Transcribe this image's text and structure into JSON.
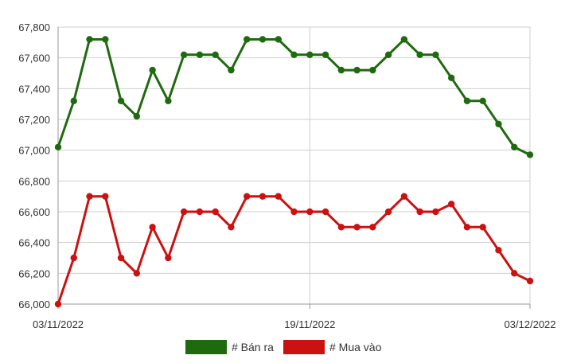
{
  "chart_data": {
    "type": "line",
    "title": "",
    "xlabel": "",
    "ylabel": "",
    "x_tick_labels": [
      "03/11/2022",
      "19/11/2022",
      "03/12/2022"
    ],
    "x_tick_index": [
      0,
      16,
      30
    ],
    "y_ticks": [
      66000,
      66200,
      66400,
      66600,
      66800,
      67000,
      67200,
      67400,
      67600,
      67800
    ],
    "y_tick_labels": [
      "66,000",
      "66,200",
      "66,400",
      "66,600",
      "66,800",
      "67,000",
      "67,200",
      "67,400",
      "67,600",
      "67,800"
    ],
    "ylim": [
      66000,
      67800
    ],
    "grid": true,
    "legend_position": "bottom",
    "series": [
      {
        "name": "# Bán ra",
        "color": "#1e6b0f",
        "values": [
          67020,
          67320,
          67720,
          67720,
          67320,
          67220,
          67520,
          67320,
          67620,
          67620,
          67620,
          67520,
          67720,
          67720,
          67720,
          67620,
          67620,
          67620,
          67520,
          67520,
          67520,
          67620,
          67720,
          67620,
          67620,
          67470,
          67320,
          67320,
          67170,
          67020,
          66970
        ]
      },
      {
        "name": "# Mua vào",
        "color": "#cc1111",
        "values": [
          66000,
          66300,
          66700,
          66700,
          66300,
          66200,
          66500,
          66300,
          66600,
          66600,
          66600,
          66500,
          66700,
          66700,
          66700,
          66600,
          66600,
          66600,
          66500,
          66500,
          66500,
          66600,
          66700,
          66600,
          66600,
          66650,
          66500,
          66500,
          66350,
          66200,
          66150
        ]
      }
    ]
  }
}
